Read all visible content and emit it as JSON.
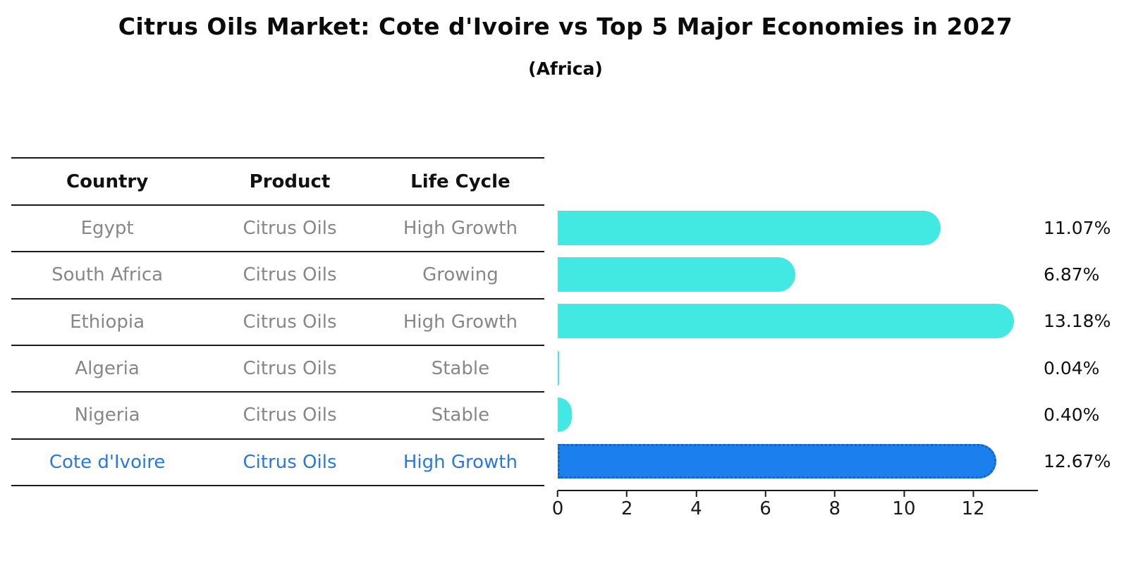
{
  "header": {
    "title": "Citrus Oils Market: Cote d'Ivoire vs Top 5 Major Economies in 2027",
    "subtitle": "(Africa)"
  },
  "table": {
    "headers": [
      "Country",
      "Product",
      "Life Cycle"
    ],
    "rows": [
      {
        "country": "Egypt",
        "product": "Citrus Oils",
        "life_cycle": "High Growth"
      },
      {
        "country": "South Africa",
        "product": "Citrus Oils",
        "life_cycle": "Growing"
      },
      {
        "country": "Ethiopia",
        "product": "Citrus Oils",
        "life_cycle": "High Growth"
      },
      {
        "country": "Algeria",
        "product": "Citrus Oils",
        "life_cycle": "Stable"
      },
      {
        "country": "Nigeria",
        "product": "Citrus Oils",
        "life_cycle": "Stable"
      },
      {
        "country": "Cote d'Ivoire",
        "product": "Citrus Oils",
        "life_cycle": "High Growth"
      }
    ]
  },
  "chart_data": {
    "type": "bar",
    "orientation": "horizontal",
    "title": "Citrus Oils Market: Cote d'Ivoire vs Top 5 Major Economies in 2027",
    "subtitle": "(Africa)",
    "categories": [
      "Egypt",
      "South Africa",
      "Ethiopia",
      "Algeria",
      "Nigeria",
      "Cote d'Ivoire"
    ],
    "values": [
      11.07,
      6.87,
      13.18,
      0.04,
      0.4,
      12.67
    ],
    "value_labels": [
      "11.07%",
      "6.87%",
      "13.18%",
      "0.04%",
      "0.40%",
      "12.67%"
    ],
    "x_ticks": [
      "0",
      "2",
      "4",
      "6",
      "8",
      "10",
      "12"
    ],
    "x_tick_values": [
      0,
      2,
      4,
      6,
      8,
      10,
      12
    ],
    "xlim": [
      0,
      13.83
    ],
    "xlabel": "",
    "ylabel": "",
    "grid": false,
    "legend": false,
    "highlight_index": 5,
    "colors": {
      "bar": "#42E8E2",
      "highlight_bar": "#1B80EE",
      "highlight_border": "#1663C6",
      "gray_text": "#878787",
      "highlight_text": "#2979DC",
      "axis": "#1a1a1a"
    }
  }
}
